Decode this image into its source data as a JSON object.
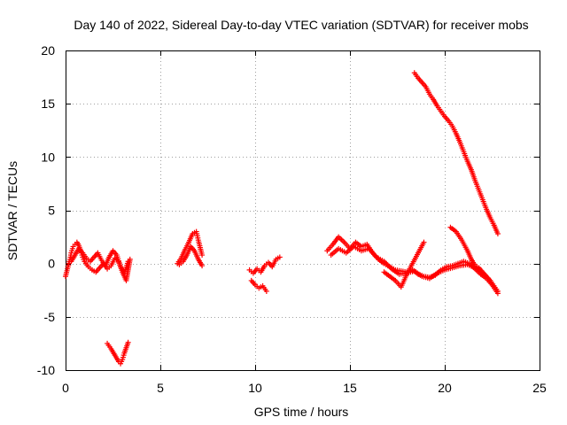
{
  "chart_data": {
    "type": "scatter",
    "title": "Day 140 of 2022, Sidereal Day-to-day VTEC variation (SDTVAR) for receiver mobs",
    "xlabel": "GPS time / hours",
    "ylabel": "SDTVAR / TECUs",
    "xlim": [
      0,
      25
    ],
    "ylim": [
      -10,
      20
    ],
    "xticks": [
      0,
      5,
      10,
      15,
      20,
      25
    ],
    "yticks": [
      -10,
      -5,
      0,
      5,
      10,
      15,
      20
    ],
    "grid": true,
    "marker": "+",
    "color": "#ff0000",
    "series": [
      {
        "name": "segment-1",
        "x": [
          0.0,
          0.1,
          0.2,
          0.3,
          0.4,
          0.5,
          0.6,
          0.7,
          0.8,
          0.9,
          1.0,
          1.2,
          1.4,
          1.6,
          1.8,
          2.0,
          2.2,
          2.4,
          2.6,
          2.8,
          3.0,
          3.2,
          3.4
        ],
        "y": [
          -1.2,
          -0.5,
          0.2,
          1.0,
          1.6,
          1.8,
          2.0,
          1.7,
          1.2,
          0.6,
          0.2,
          -0.3,
          -0.6,
          -0.8,
          -0.4,
          0.0,
          -0.5,
          -0.2,
          0.5,
          0.2,
          -0.8,
          -1.6,
          0.4
        ]
      },
      {
        "name": "segment-1b",
        "x": [
          0.3,
          0.5,
          0.7,
          0.9,
          1.1,
          1.3,
          1.5,
          1.7,
          1.9,
          2.1,
          2.3,
          2.5,
          2.7,
          2.9,
          3.1,
          3.3
        ],
        "y": [
          0.2,
          0.8,
          1.4,
          1.0,
          0.5,
          0.2,
          0.6,
          1.0,
          0.3,
          -0.2,
          0.6,
          1.2,
          0.8,
          -0.3,
          -0.9,
          0.2
        ]
      },
      {
        "name": "segment-2",
        "x": [
          2.2,
          2.4,
          2.6,
          2.8,
          2.9,
          3.0,
          3.1,
          3.2,
          3.3
        ],
        "y": [
          -7.5,
          -8.0,
          -8.6,
          -9.2,
          -9.4,
          -9.0,
          -8.4,
          -7.9,
          -7.4
        ]
      },
      {
        "name": "segment-3",
        "x": [
          5.9,
          6.1,
          6.3,
          6.5,
          6.7,
          6.9,
          7.0,
          7.2
        ],
        "y": [
          0.0,
          0.5,
          1.3,
          2.0,
          2.8,
          3.0,
          2.2,
          0.8
        ]
      },
      {
        "name": "segment-3b",
        "x": [
          6.0,
          6.2,
          6.4,
          6.6,
          6.8,
          7.0,
          7.2
        ],
        "y": [
          -0.1,
          0.2,
          0.8,
          1.6,
          1.2,
          0.4,
          -0.2
        ]
      },
      {
        "name": "segment-4",
        "x": [
          9.7,
          9.9,
          10.1,
          10.3,
          10.5,
          10.7,
          10.9,
          11.1,
          11.3
        ],
        "y": [
          -0.6,
          -0.9,
          -0.5,
          -0.8,
          -0.2,
          0.1,
          -0.3,
          0.4,
          0.6
        ]
      },
      {
        "name": "segment-4b",
        "x": [
          9.8,
          10.0,
          10.2,
          10.4,
          10.6
        ],
        "y": [
          -1.6,
          -2.0,
          -2.3,
          -2.1,
          -2.6
        ]
      },
      {
        "name": "segment-5",
        "x": [
          13.8,
          14.1,
          14.4,
          14.7,
          15.0,
          15.3,
          15.6,
          15.9,
          16.2,
          16.5,
          16.8,
          17.1,
          17.4,
          17.7,
          18.0,
          18.3,
          18.6,
          18.9,
          19.2,
          19.5,
          19.8,
          20.1,
          20.4,
          20.7,
          21.0,
          21.3,
          21.6,
          21.9,
          22.2,
          22.5,
          22.8
        ],
        "y": [
          1.2,
          1.8,
          2.5,
          2.0,
          1.4,
          2.0,
          1.6,
          1.8,
          1.0,
          0.4,
          0.0,
          -0.3,
          -0.6,
          -0.7,
          -0.8,
          -0.6,
          -1.0,
          -1.2,
          -1.3,
          -1.1,
          -0.6,
          -0.3,
          -0.2,
          0.0,
          0.2,
          0.0,
          -0.5,
          -1.0,
          -1.4,
          -2.0,
          -2.8
        ]
      },
      {
        "name": "segment-5b",
        "x": [
          14.0,
          14.4,
          14.8,
          15.2,
          15.6,
          16.0,
          16.4,
          16.8,
          17.2,
          17.6,
          18.0,
          18.4,
          18.8,
          19.2,
          19.6,
          20.0,
          20.4,
          20.8,
          21.2,
          21.6,
          22.0,
          22.4
        ],
        "y": [
          0.8,
          1.4,
          1.0,
          1.6,
          1.2,
          1.4,
          0.6,
          0.2,
          -0.5,
          -1.0,
          -0.9,
          -0.7,
          -1.2,
          -1.4,
          -0.9,
          -0.6,
          -0.4,
          -0.2,
          -0.1,
          -0.4,
          -0.9,
          -1.6
        ]
      },
      {
        "name": "segment-6",
        "x": [
          16.8,
          17.1,
          17.4,
          17.7,
          18.0,
          18.3,
          18.6,
          18.9
        ],
        "y": [
          -0.8,
          -1.2,
          -1.6,
          -2.2,
          -1.0,
          0.0,
          1.0,
          2.0
        ]
      },
      {
        "name": "segment-7",
        "x": [
          20.3,
          20.6,
          20.9,
          21.2,
          21.4,
          21.6,
          21.8,
          22.0,
          22.2,
          22.4,
          22.6,
          22.8
        ],
        "y": [
          3.4,
          3.0,
          2.2,
          1.2,
          0.4,
          -0.2,
          -0.4,
          -0.8,
          -1.2,
          -1.6,
          -2.1,
          -2.6
        ]
      },
      {
        "name": "segment-8",
        "x": [
          18.4,
          18.6,
          18.8,
          19.0,
          19.2,
          19.4,
          19.6,
          19.8,
          20.0,
          20.2,
          20.4,
          20.6,
          20.8,
          21.0,
          21.2,
          21.4,
          21.6,
          21.8,
          22.0,
          22.2,
          22.4,
          22.6,
          22.8
        ],
        "y": [
          17.9,
          17.4,
          17.0,
          16.6,
          15.9,
          15.4,
          14.8,
          14.3,
          13.8,
          13.4,
          12.9,
          12.2,
          11.4,
          10.5,
          9.6,
          8.8,
          7.8,
          6.9,
          6.0,
          5.1,
          4.3,
          3.6,
          2.8
        ]
      }
    ]
  }
}
